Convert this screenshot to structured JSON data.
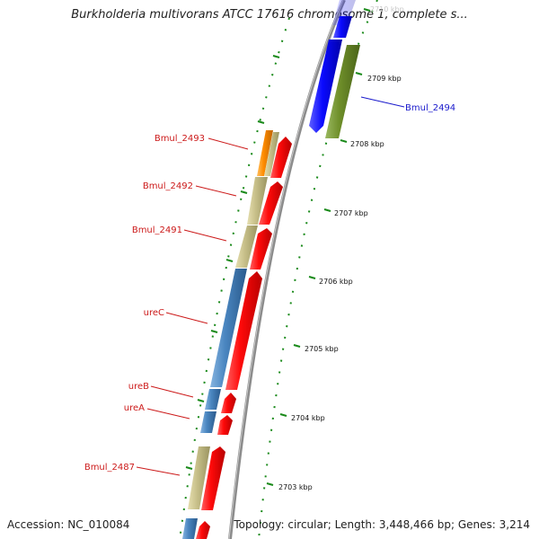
{
  "title": "Burkholderia multivorans ATCC 17616 chromosome 1, complete s...",
  "footer": {
    "accession": "Accession: NC_010084",
    "summary": "Topology: circular; Length: 3,448,466 bp; Genes: 3,214"
  },
  "ticks": [
    {
      "label": "2710 kbp",
      "faded": true
    },
    {
      "label": "2709 kbp"
    },
    {
      "label": "2708 kbp"
    },
    {
      "label": "2707 kbp"
    },
    {
      "label": "2706 kbp"
    },
    {
      "label": "2705 kbp"
    },
    {
      "label": "2704 kbp"
    },
    {
      "label": "2703 kbp"
    }
  ],
  "gene_labels": [
    {
      "text": "Bmul_2494",
      "color": "#1a1acc",
      "side": "right"
    },
    {
      "text": "Bmul_2493",
      "color": "#cc1a1a",
      "side": "left"
    },
    {
      "text": "Bmul_2492",
      "color": "#cc1a1a",
      "side": "left"
    },
    {
      "text": "Bmul_2491",
      "color": "#cc1a1a",
      "side": "left"
    },
    {
      "text": "ureC",
      "color": "#cc1a1a",
      "side": "left"
    },
    {
      "text": "ureB",
      "color": "#cc1a1a",
      "side": "left"
    },
    {
      "text": "ureA",
      "color": "#cc1a1a",
      "side": "left"
    },
    {
      "text": "Bmul_2487",
      "color": "#cc1a1a",
      "side": "left"
    }
  ],
  "colors": {
    "backbone": "#8c8c8c",
    "cds_red": "#ff0a0a",
    "cds_blue": "#0a0aff",
    "cog_olive": "#6f8f2a",
    "cog_tan": "#c8c08a",
    "cog_steel": "#4a86c0",
    "cog_orange": "#ff8c00",
    "tick_green": "#1a8a1a"
  }
}
